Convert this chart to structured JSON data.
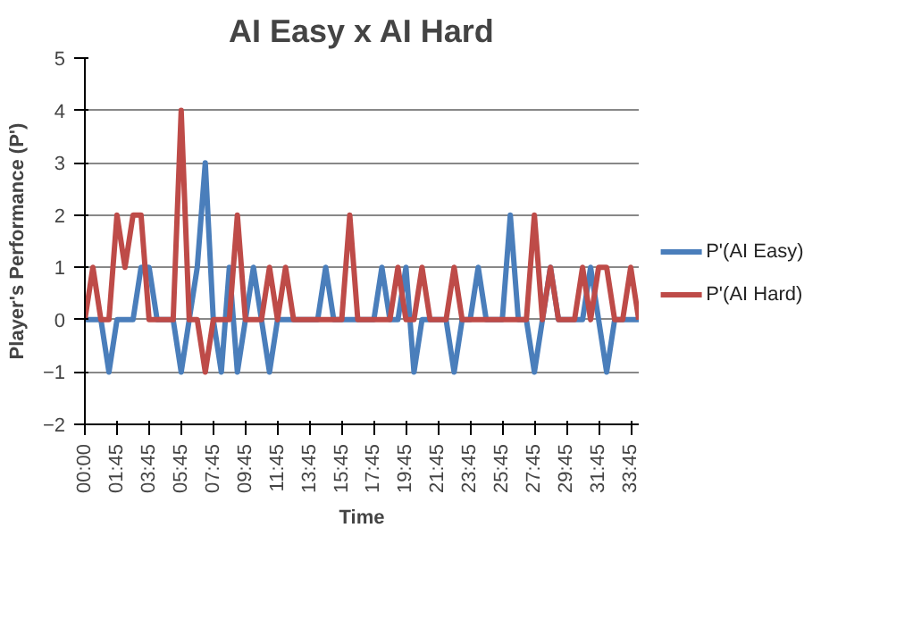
{
  "chart_data": {
    "type": "line",
    "title": "AI Easy x AI Hard",
    "xlabel": "Time",
    "ylabel": "Player's Performance (P')",
    "categories": [
      "00:00",
      null,
      null,
      null,
      "01:45",
      null,
      null,
      null,
      "03:45",
      null,
      null,
      null,
      "05:45",
      null,
      null,
      null,
      "07:45",
      null,
      null,
      null,
      "09:45",
      null,
      null,
      null,
      "11:45",
      null,
      null,
      null,
      "13:45",
      null,
      null,
      null,
      "15:45",
      null,
      null,
      null,
      "17:45",
      null,
      null,
      null,
      "19:45",
      null,
      null,
      null,
      "21:45",
      null,
      null,
      null,
      "23:45",
      null,
      null,
      null,
      "25:45",
      null,
      null,
      null,
      "27:45",
      null,
      null,
      null,
      "29:45",
      null,
      null,
      null,
      "31:45",
      null,
      null,
      null,
      "33:45",
      null
    ],
    "series": [
      {
        "name": "P'(AI Easy)",
        "color": "#4a7ebb",
        "values": [
          0,
          0,
          0,
          -1,
          0,
          0,
          0,
          1,
          1,
          0,
          0,
          0,
          -1,
          0,
          1,
          3,
          0,
          -1,
          1,
          -1,
          0,
          1,
          0,
          -1,
          0,
          0,
          0,
          0,
          0,
          0,
          1,
          0,
          0,
          0,
          0,
          0,
          0,
          1,
          0,
          0,
          1,
          -1,
          0,
          0,
          0,
          0,
          -1,
          0,
          0,
          1,
          0,
          0,
          0,
          2,
          0,
          0,
          -1,
          0,
          1,
          0,
          0,
          0,
          0,
          1,
          0,
          -1,
          0,
          0,
          0,
          0
        ]
      },
      {
        "name": "P'(AI Hard)",
        "color": "#be4b48",
        "values": [
          0,
          1,
          0,
          0,
          2,
          1,
          2,
          2,
          0,
          0,
          0,
          0,
          4,
          0,
          0,
          -1,
          0,
          0,
          0,
          2,
          0,
          0,
          0,
          1,
          0,
          1,
          0,
          0,
          0,
          0,
          0,
          0,
          0,
          2,
          0,
          0,
          0,
          0,
          0,
          1,
          0,
          0,
          1,
          0,
          0,
          0,
          1,
          0,
          0,
          0,
          0,
          0,
          0,
          0,
          0,
          0,
          2,
          0,
          1,
          0,
          0,
          0,
          1,
          0,
          1,
          1,
          0,
          0,
          1,
          0
        ]
      }
    ],
    "ylim": [
      -2,
      5
    ],
    "yticks": [
      -2,
      -1,
      0,
      1,
      2,
      3,
      4,
      5
    ],
    "grid": "y",
    "legend": "right",
    "marker": "none",
    "line_style": "solid"
  }
}
